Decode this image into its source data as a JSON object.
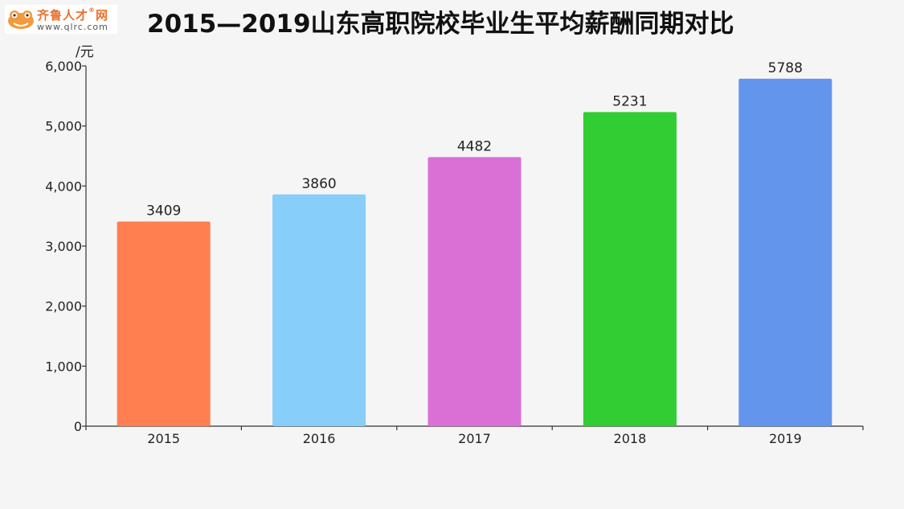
{
  "logo": {
    "name": "齐鲁人才",
    "trademark": "®",
    "suffix": "网",
    "url": "www.qlrc.com"
  },
  "colors": {
    "bars": [
      "#ff7f50",
      "#87cefa",
      "#da70d6",
      "#32cd32",
      "#6495ed"
    ],
    "axis": "#333333",
    "background": "#f5f5f5"
  },
  "chart_data": {
    "type": "bar",
    "title": "2015—2019山东高职院校毕业生平均薪酬同期对比",
    "xlabel": "",
    "ylabel": "/元",
    "categories": [
      "2015",
      "2016",
      "2017",
      "2018",
      "2019"
    ],
    "values": [
      3409,
      3860,
      4482,
      5231,
      5788
    ],
    "data_labels": [
      "3409",
      "3860",
      "4482",
      "5231",
      "5788"
    ],
    "ylim": [
      0,
      6000
    ],
    "yticks": [
      0,
      1000,
      2000,
      3000,
      4000,
      5000,
      6000
    ],
    "ytick_labels": [
      "0",
      "1,000",
      "2,000",
      "3,000",
      "4,000",
      "5,000",
      "6,000"
    ],
    "grid": false,
    "legend": "none"
  }
}
